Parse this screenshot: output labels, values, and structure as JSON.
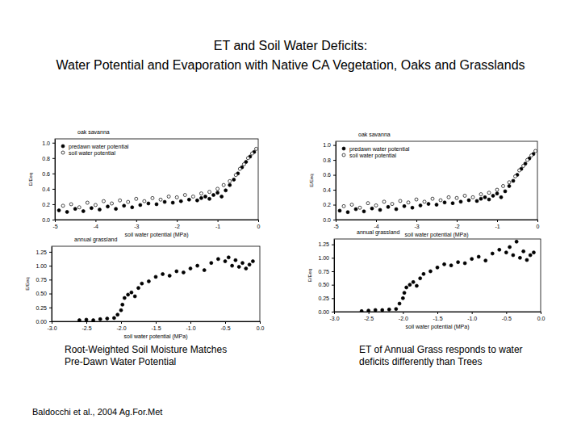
{
  "title": [
    "ET and Soil Water Deficits:",
    "Water Potential and Evaporation with Native CA Vegetation, Oaks and Grasslands"
  ],
  "captions": [
    [
      "Root-Weighted Soil Moisture Matches",
      "Pre-Dawn Water Potential"
    ],
    [
      "ET of Annual Grass responds to water",
      "deficits differently than Trees"
    ]
  ],
  "citation": "Baldocchi et al., 2004 Ag.For.Met",
  "chart_data": [
    {
      "type": "scatter",
      "title": "oak savanna",
      "x_label": "soil water potential (MPa)",
      "y_label": "E/Eeq",
      "xlim": [
        -5,
        0
      ],
      "ylim": [
        0,
        1.05
      ],
      "xticks": [
        -5,
        -4,
        -3,
        -2,
        -1,
        0
      ],
      "yticks": [
        {
          "value": 0,
          "label": "0.0"
        },
        0.2,
        0.4,
        0.6,
        0.8,
        {
          "value": 1,
          "label": "1.0"
        }
      ],
      "legend": "upper left",
      "series": [
        {
          "name": "predawn water potential",
          "color": "#000000",
          "marker": "circle",
          "x": [
            -4.9,
            -4.7,
            -4.5,
            -4.3,
            -4.1,
            -3.9,
            -3.7,
            -3.5,
            -3.3,
            -3.1,
            -2.9,
            -2.7,
            -2.5,
            -2.3,
            -2.1,
            -1.9,
            -1.7,
            -1.5,
            -1.4,
            -1.3,
            -1.2,
            -1.1,
            -1.0,
            -0.9,
            -0.8,
            -0.7,
            -0.6,
            -0.5,
            -0.4,
            -0.3,
            -0.2,
            -0.1
          ],
          "values": [
            0.12,
            0.1,
            0.14,
            0.11,
            0.15,
            0.13,
            0.17,
            0.14,
            0.18,
            0.16,
            0.19,
            0.21,
            0.2,
            0.23,
            0.22,
            0.24,
            0.26,
            0.25,
            0.28,
            0.3,
            0.27,
            0.32,
            0.35,
            0.3,
            0.38,
            0.45,
            0.52,
            0.6,
            0.68,
            0.75,
            0.82,
            0.88
          ]
        },
        {
          "name": "soil water potential",
          "color": "#000000",
          "marker": "open_circle",
          "x": [
            -4.8,
            -4.6,
            -4.4,
            -4.2,
            -4.0,
            -3.8,
            -3.6,
            -3.4,
            -3.2,
            -3.0,
            -2.8,
            -2.6,
            -2.4,
            -2.2,
            -2.0,
            -1.8,
            -1.6,
            -1.4,
            -1.2,
            -1.0,
            -0.85,
            -0.7,
            -0.55,
            -0.45,
            -0.35,
            -0.25,
            -0.15,
            -0.05
          ],
          "values": [
            0.18,
            0.2,
            0.16,
            0.22,
            0.19,
            0.24,
            0.21,
            0.25,
            0.23,
            0.27,
            0.24,
            0.28,
            0.26,
            0.3,
            0.29,
            0.32,
            0.3,
            0.34,
            0.36,
            0.4,
            0.45,
            0.5,
            0.58,
            0.66,
            0.72,
            0.8,
            0.86,
            0.92
          ]
        }
      ]
    },
    {
      "type": "scatter",
      "title": "oak savanna",
      "x_label": "soil water potential (MPa)",
      "y_label": "E/Eeq",
      "xlim": [
        -5,
        0
      ],
      "ylim": [
        0,
        1.05
      ],
      "xticks": [
        -5,
        -4,
        -3,
        -2,
        -1,
        0
      ],
      "yticks": [
        {
          "value": 0,
          "label": "0.0"
        },
        0.2,
        0.4,
        0.6,
        0.8,
        {
          "value": 1,
          "label": "1.0"
        }
      ],
      "legend": "upper left",
      "series": [
        {
          "name": "predawn water potential",
          "color": "#000000",
          "marker": "circle",
          "x": [
            -4.9,
            -4.7,
            -4.5,
            -4.3,
            -4.1,
            -3.9,
            -3.7,
            -3.5,
            -3.3,
            -3.1,
            -2.9,
            -2.7,
            -2.5,
            -2.3,
            -2.1,
            -1.9,
            -1.7,
            -1.5,
            -1.4,
            -1.3,
            -1.2,
            -1.1,
            -1.0,
            -0.9,
            -0.8,
            -0.7,
            -0.6,
            -0.5,
            -0.4,
            -0.3,
            -0.2,
            -0.1
          ],
          "values": [
            0.12,
            0.1,
            0.14,
            0.11,
            0.15,
            0.13,
            0.17,
            0.14,
            0.18,
            0.16,
            0.19,
            0.21,
            0.2,
            0.23,
            0.22,
            0.24,
            0.26,
            0.25,
            0.28,
            0.3,
            0.27,
            0.32,
            0.35,
            0.3,
            0.38,
            0.45,
            0.52,
            0.6,
            0.68,
            0.75,
            0.82,
            0.88
          ]
        },
        {
          "name": "soil water potential",
          "color": "#000000",
          "marker": "open_circle",
          "x": [
            -4.8,
            -4.6,
            -4.4,
            -4.2,
            -4.0,
            -3.8,
            -3.6,
            -3.4,
            -3.2,
            -3.0,
            -2.8,
            -2.6,
            -2.4,
            -2.2,
            -2.0,
            -1.8,
            -1.6,
            -1.4,
            -1.2,
            -1.0,
            -0.85,
            -0.7,
            -0.55,
            -0.45,
            -0.35,
            -0.25,
            -0.15,
            -0.05
          ],
          "values": [
            0.18,
            0.2,
            0.16,
            0.22,
            0.19,
            0.24,
            0.21,
            0.25,
            0.23,
            0.27,
            0.24,
            0.28,
            0.26,
            0.3,
            0.29,
            0.32,
            0.3,
            0.34,
            0.36,
            0.4,
            0.45,
            0.5,
            0.58,
            0.66,
            0.72,
            0.8,
            0.86,
            0.92
          ]
        }
      ]
    },
    {
      "type": "scatter",
      "title": "annual grassland",
      "x_label": "soil water potential (MPa)",
      "y_label": "E/Eeq",
      "xlim": [
        -3,
        0
      ],
      "ylim": [
        0,
        1.35
      ],
      "xticks": [
        {
          "value": -3,
          "label": "-3.0"
        },
        -2.5,
        {
          "value": -2,
          "label": "-2.0"
        },
        -1.5,
        {
          "value": -1,
          "label": "-1.0"
        },
        -0.5,
        {
          "value": 0,
          "label": "0.0"
        }
      ],
      "yticks": [
        {
          "value": 0,
          "label": "0.00"
        },
        0.25,
        {
          "value": 0.5,
          "label": "0.50"
        },
        0.75,
        {
          "value": 1,
          "label": "1.00"
        },
        1.25
      ],
      "series": [
        {
          "name": "annual grassland",
          "color": "#000000",
          "marker": "circle",
          "x": [
            -2.6,
            -2.5,
            -2.4,
            -2.3,
            -2.2,
            -2.1,
            -2.05,
            -2.0,
            -1.98,
            -1.95,
            -1.9,
            -1.85,
            -1.8,
            -1.75,
            -1.7,
            -1.6,
            -1.5,
            -1.4,
            -1.3,
            -1.2,
            -1.1,
            -1.0,
            -0.9,
            -0.8,
            -0.7,
            -0.6,
            -0.5,
            -0.45,
            -0.4,
            -0.35,
            -0.3,
            -0.25,
            -0.2,
            -0.15,
            -0.1
          ],
          "values": [
            0.02,
            0.03,
            0.02,
            0.04,
            0.05,
            0.06,
            0.12,
            0.2,
            0.3,
            0.42,
            0.48,
            0.52,
            0.45,
            0.6,
            0.68,
            0.72,
            0.8,
            0.85,
            0.82,
            0.9,
            0.88,
            0.95,
            1.0,
            0.92,
            1.05,
            1.12,
            1.08,
            1.15,
            1.0,
            1.1,
            0.98,
            1.05,
            0.95,
            1.02,
            1.08
          ]
        }
      ]
    },
    {
      "type": "scatter",
      "title": "annual grassland",
      "x_label": "soil water potential (MPa)",
      "y_label": "E/Eeq",
      "xlim": [
        -3,
        0
      ],
      "ylim": [
        0,
        1.35
      ],
      "xticks": [
        {
          "value": -3,
          "label": "-3.0"
        },
        -2.5,
        {
          "value": -2,
          "label": "-2.0"
        },
        -1.5,
        {
          "value": -1,
          "label": "-1.0"
        },
        -0.5,
        {
          "value": 0,
          "label": "0.0"
        }
      ],
      "yticks": [
        {
          "value": 0,
          "label": "0.00"
        },
        0.25,
        {
          "value": 0.5,
          "label": "0.50"
        },
        0.75,
        {
          "value": 1,
          "label": "1.00"
        },
        1.25
      ],
      "series": [
        {
          "name": "annual grassland",
          "color": "#000000",
          "marker": "circle",
          "x": [
            -2.6,
            -2.5,
            -2.4,
            -2.3,
            -2.2,
            -2.1,
            -2.05,
            -2.0,
            -1.98,
            -1.95,
            -1.9,
            -1.85,
            -1.8,
            -1.75,
            -1.7,
            -1.6,
            -1.5,
            -1.4,
            -1.3,
            -1.2,
            -1.1,
            -1.0,
            -0.9,
            -0.8,
            -0.7,
            -0.6,
            -0.5,
            -0.45,
            -0.4,
            -0.35,
            -0.3,
            -0.25,
            -0.2,
            -0.15,
            -0.1
          ],
          "values": [
            0.01,
            0.02,
            0.03,
            0.03,
            0.04,
            0.05,
            0.15,
            0.25,
            0.35,
            0.45,
            0.5,
            0.55,
            0.48,
            0.62,
            0.7,
            0.75,
            0.82,
            0.88,
            0.86,
            0.92,
            0.9,
            0.98,
            1.02,
            0.95,
            1.08,
            1.15,
            1.1,
            1.2,
            1.05,
            1.3,
            1.0,
            1.12,
            0.96,
            1.05,
            1.1
          ]
        }
      ]
    }
  ]
}
